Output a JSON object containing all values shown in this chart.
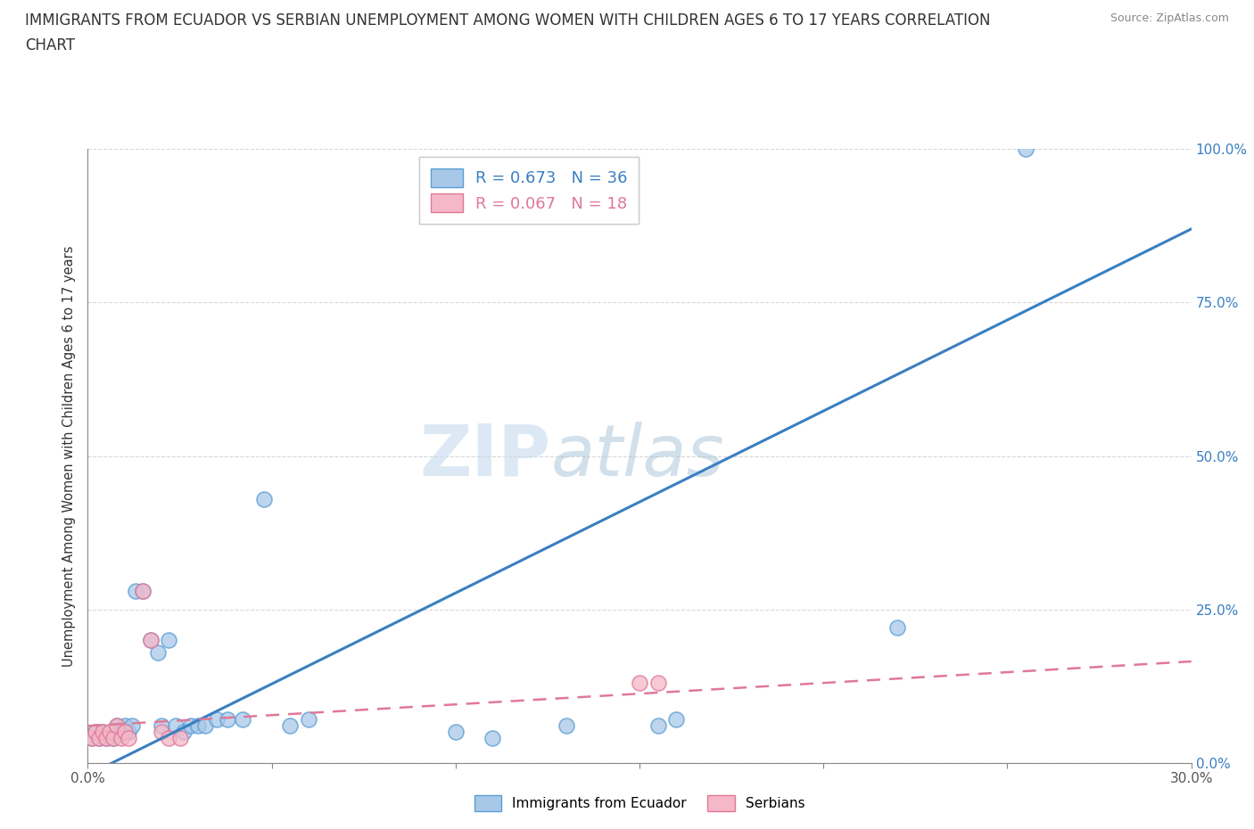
{
  "title_line1": "IMMIGRANTS FROM ECUADOR VS SERBIAN UNEMPLOYMENT AMONG WOMEN WITH CHILDREN AGES 6 TO 17 YEARS CORRELATION",
  "title_line2": "CHART",
  "source_text": "Source: ZipAtlas.com",
  "ylabel": "Unemployment Among Women with Children Ages 6 to 17 years",
  "xlim": [
    0,
    0.3
  ],
  "ylim": [
    0,
    1.0
  ],
  "xticks": [
    0.0,
    0.05,
    0.1,
    0.15,
    0.2,
    0.25,
    0.3
  ],
  "yticks": [
    0.0,
    0.25,
    0.5,
    0.75,
    1.0
  ],
  "yticklabels": [
    "0.0%",
    "25.0%",
    "50.0%",
    "75.0%",
    "100.0%"
  ],
  "ecuador_color": "#a8c8e8",
  "ecuador_color_dark": "#5a9fd4",
  "serbian_color": "#f4b8c8",
  "serbian_color_dark": "#e07898",
  "ecuador_R": 0.673,
  "ecuador_N": 36,
  "serbian_R": 0.067,
  "serbian_N": 18,
  "ecuador_line_color": "#3a7fc1",
  "serbian_line_color": "#e07898",
  "ecuador_scatter_x": [
    0.001,
    0.002,
    0.003,
    0.004,
    0.005,
    0.006,
    0.007,
    0.008,
    0.009,
    0.01,
    0.011,
    0.012,
    0.013,
    0.015,
    0.017,
    0.019,
    0.02,
    0.022,
    0.024,
    0.026,
    0.028,
    0.03,
    0.032,
    0.035,
    0.038,
    0.042,
    0.048,
    0.055,
    0.06,
    0.1,
    0.11,
    0.13,
    0.155,
    0.16,
    0.22,
    0.255
  ],
  "ecuador_scatter_y": [
    0.04,
    0.05,
    0.04,
    0.05,
    0.04,
    0.05,
    0.04,
    0.06,
    0.05,
    0.06,
    0.05,
    0.06,
    0.28,
    0.28,
    0.2,
    0.18,
    0.06,
    0.2,
    0.06,
    0.05,
    0.06,
    0.06,
    0.06,
    0.07,
    0.07,
    0.07,
    0.43,
    0.06,
    0.07,
    0.05,
    0.04,
    0.06,
    0.06,
    0.07,
    0.22,
    1.0
  ],
  "serbian_scatter_x": [
    0.001,
    0.002,
    0.003,
    0.004,
    0.005,
    0.006,
    0.007,
    0.008,
    0.009,
    0.01,
    0.011,
    0.015,
    0.017,
    0.02,
    0.022,
    0.025,
    0.15,
    0.155
  ],
  "serbian_scatter_y": [
    0.04,
    0.05,
    0.04,
    0.05,
    0.04,
    0.05,
    0.04,
    0.06,
    0.04,
    0.05,
    0.04,
    0.28,
    0.2,
    0.05,
    0.04,
    0.04,
    0.13,
    0.13
  ],
  "watermark_zip": "ZIP",
  "watermark_atlas": "atlas",
  "background_color": "#ffffff",
  "grid_color": "#d8d8d8"
}
